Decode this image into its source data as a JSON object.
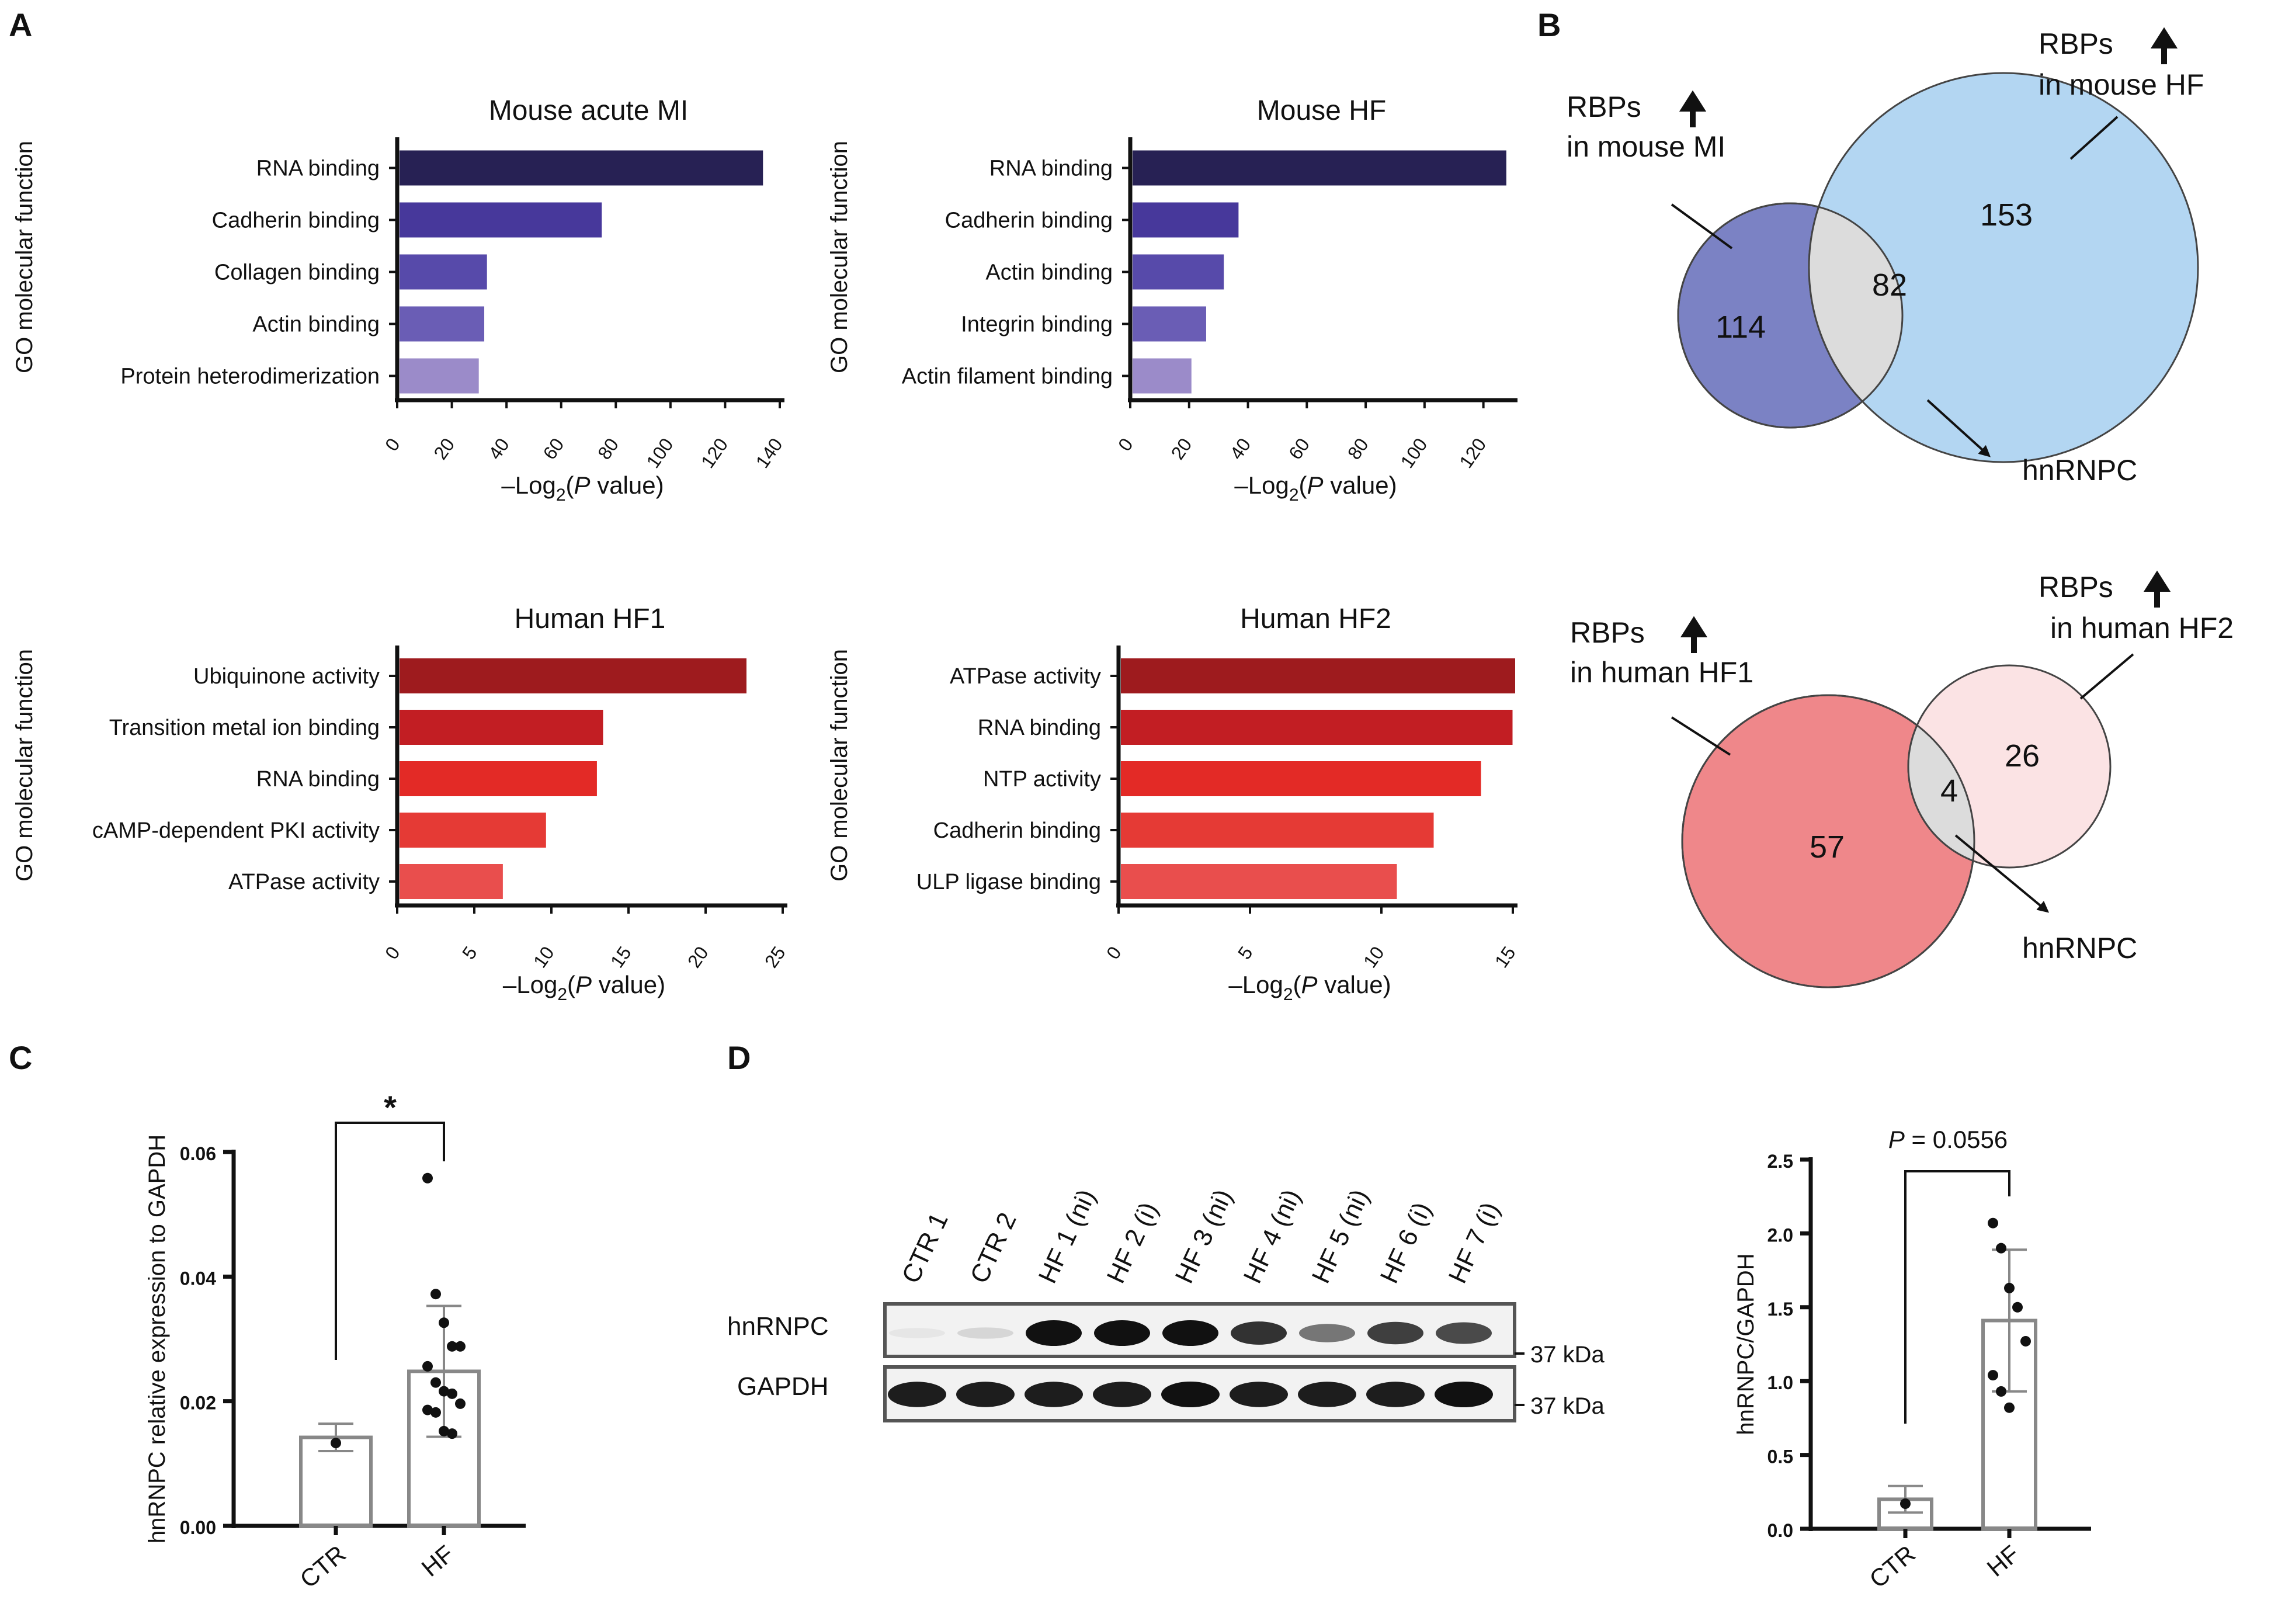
{
  "panels": [
    "A",
    "B",
    "C",
    "D"
  ],
  "panel_a": {
    "y_axis_label": "GO molecular function",
    "x_axis_label": "–Log",
    "x_axis_sub": "2",
    "x_axis_pre": "(",
    "x_axis_italic": "P",
    "x_axis_post": " value)"
  },
  "panel_b": {
    "top": {
      "left_label_1": "RBPs",
      "left_label_2": "in mouse MI",
      "right_label_1": "RBPs",
      "right_label_2": "in mouse HF",
      "left_only": "114",
      "overlap": "82",
      "right_only": "153",
      "arrow_target": "hnRNPC",
      "left_color": "#7b82c4",
      "right_color": "#b3d6f2",
      "overlap_color": "#dcdcdc"
    },
    "bottom": {
      "left_label_1": "RBPs",
      "left_label_2": "in human HF1",
      "right_label_1": "RBPs",
      "right_label_2": "in human HF2",
      "left_only": "57",
      "overlap": "4",
      "right_only": "26",
      "arrow_target": "hnRNPC",
      "left_color": "#ef878a",
      "right_color": "#fbe3e4",
      "overlap_color": "#dcdcdc"
    }
  },
  "panel_d_blot": {
    "lanes": [
      "CTR 1",
      "CTR 2",
      "HF 1 (ni)",
      "HF 2 (i)",
      "HF 3 (ni)",
      "HF 4 (ni)",
      "HF 5 (ni)",
      "HF 6 (i)",
      "HF 7 (i)"
    ],
    "rows": [
      "hnRNPC",
      "GAPDH"
    ],
    "marker": "37 kDa",
    "hnrnpc_intensity": [
      0.05,
      0.12,
      1.0,
      1.0,
      1.0,
      0.85,
      0.55,
      0.8,
      0.75
    ],
    "gapdh_intensity": [
      0.95,
      0.95,
      0.95,
      0.95,
      1.0,
      0.95,
      0.95,
      0.95,
      1.0
    ]
  },
  "chart_data": [
    {
      "type": "bar",
      "orientation": "horizontal",
      "title": "Mouse acute MI",
      "categories": [
        "RNA binding",
        "Cadherin binding",
        "Collagen binding",
        "Actin binding",
        "Protein heterodimerization"
      ],
      "values": [
        133,
        74,
        32,
        31,
        29
      ],
      "xlim": [
        0,
        140
      ],
      "xticks": [
        "0",
        "20",
        "40",
        "60",
        "80",
        "100",
        "120",
        "140"
      ],
      "xlabel": "–Log2(P value)",
      "ylabel": "GO molecular function",
      "colors": [
        "#272154",
        "#47389b",
        "#574aaa",
        "#6a5db5",
        "#9b8bc9"
      ]
    },
    {
      "type": "bar",
      "orientation": "horizontal",
      "title": "Mouse HF",
      "categories": [
        "RNA binding",
        "Cadherin binding",
        "Actin binding",
        "Integrin binding",
        "Actin filament binding"
      ],
      "values": [
        127,
        36,
        31,
        25,
        20
      ],
      "xlim": [
        0,
        130
      ],
      "xticks": [
        "0",
        "20",
        "40",
        "60",
        "80",
        "100",
        "120"
      ],
      "xlabel": "–Log2(P value)",
      "ylabel": "GO molecular function",
      "colors": [
        "#272154",
        "#47389b",
        "#574aaa",
        "#6a5db5",
        "#9b8bc9"
      ]
    },
    {
      "type": "bar",
      "orientation": "horizontal",
      "title": "Human HF1",
      "categories": [
        "Ubiquinone activity",
        "Transition metal ion binding",
        "RNA binding",
        "cAMP-dependent PKI activity",
        "ATPase activity"
      ],
      "values": [
        22.5,
        13.2,
        12.8,
        9.5,
        6.7
      ],
      "xlim": [
        0,
        25
      ],
      "xticks": [
        "0",
        "5",
        "10",
        "15",
        "20",
        "25"
      ],
      "xlabel": "–Log2(P value)",
      "ylabel": "GO molecular function",
      "colors": [
        "#9e1b1e",
        "#c21e23",
        "#e32a26",
        "#e53a35",
        "#e94e4d"
      ]
    },
    {
      "type": "bar",
      "orientation": "horizontal",
      "title": "Human HF2",
      "categories": [
        "ATPase activity",
        "RNA binding",
        "NTP activity",
        "Cadherin binding",
        "ULP ligase binding"
      ],
      "values": [
        15,
        14.9,
        13.7,
        11.9,
        10.5
      ],
      "xlim": [
        0,
        15
      ],
      "xticks": [
        "0",
        "5",
        "10",
        "15"
      ],
      "xlabel": "–Log2(P value)",
      "ylabel": "GO molecular function",
      "colors": [
        "#9e1b1e",
        "#c21e23",
        "#e32a26",
        "#e53a35",
        "#e94e4d"
      ]
    },
    {
      "type": "bar",
      "title": "",
      "categories": [
        "CTR",
        "HF"
      ],
      "values": [
        0.0142,
        0.0248
      ],
      "errors": [
        0.0022,
        0.0105
      ],
      "points": [
        [
          0.0133
        ],
        [
          0.0558,
          0.0372,
          0.0326,
          0.0288,
          0.0288,
          0.0256,
          0.023,
          0.0216,
          0.0212,
          0.0196,
          0.0186,
          0.0182,
          0.0152,
          0.0148
        ]
      ],
      "ylabel": "hnRNPC relative expression to GAPDH",
      "ylim": [
        0,
        0.06
      ],
      "yticks": [
        "0.00",
        "0.02",
        "0.04",
        "0.06"
      ],
      "significance": "*"
    },
    {
      "type": "bar",
      "title": "",
      "categories": [
        "CTR",
        "HF"
      ],
      "values": [
        0.2,
        1.41
      ],
      "errors": [
        0.09,
        0.48
      ],
      "points": [
        [
          0.17
        ],
        [
          2.07,
          1.9,
          1.63,
          1.5,
          1.27,
          1.04,
          0.93,
          0.82
        ]
      ],
      "ylabel": "hnRNPC/GAPDH",
      "ylim": [
        0,
        2.5
      ],
      "yticks": [
        "0.0",
        "0.5",
        "1.0",
        "1.5",
        "2.0",
        "2.5"
      ],
      "significance_italic": "P",
      "significance_text": " = 0.0556"
    }
  ]
}
